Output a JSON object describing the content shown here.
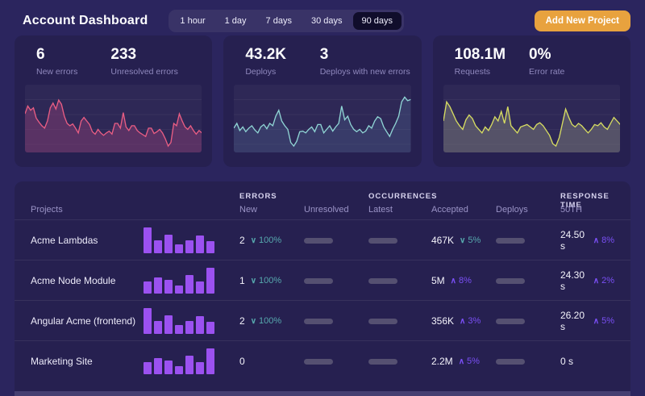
{
  "header": {
    "title": "Account Dashboard",
    "time_ranges": [
      "1 hour",
      "1 day",
      "7 days",
      "30 days",
      "90 days"
    ],
    "active_range": "90 days",
    "add_button_label": "Add New Project"
  },
  "colors": {
    "accent_orange": "#E8A23E",
    "trend_teal": "#57A9AE",
    "trend_purple": "#7A4FF5",
    "bar_purple": "#9B51F0",
    "line_errors": "#E85D83",
    "fill_errors": "rgba(142,62,117,0.45)",
    "line_deploys": "#8FD4D4",
    "fill_deploys": "rgba(84,110,155,0.28)",
    "line_requests": "#D6DC61",
    "fill_requests": "rgba(132,132,126,0.45)"
  },
  "stat_cards": [
    {
      "primary": {
        "value": "6",
        "label": "New errors"
      },
      "secondary": {
        "value": "233",
        "label": "Unresolved errors"
      }
    },
    {
      "primary": {
        "value": "43.2K",
        "label": "Deploys"
      },
      "secondary": {
        "value": "3",
        "label": "Deploys with new errors"
      }
    },
    {
      "primary": {
        "value": "108.1M",
        "label": "Requests"
      },
      "secondary": {
        "value": "0%",
        "label": "Error rate"
      }
    }
  ],
  "chart_data": [
    {
      "type": "area",
      "name": "errors-sparkline",
      "line_color": "#E85D83",
      "fill_color": "rgba(142,62,117,0.45)",
      "ylim": [
        0,
        100
      ],
      "grid": true,
      "values": [
        62,
        75,
        68,
        72,
        55,
        48,
        42,
        38,
        50,
        72,
        80,
        70,
        85,
        78,
        58,
        46,
        42,
        45,
        38,
        30,
        50,
        56,
        50,
        44,
        32,
        28,
        36,
        30,
        26,
        30,
        33,
        28,
        46,
        46,
        38,
        64,
        40,
        34,
        42,
        42,
        34,
        30,
        27,
        24,
        38,
        38,
        29,
        32,
        36,
        30,
        20,
        8,
        14,
        46,
        42,
        62,
        50,
        40,
        36,
        42,
        34,
        28,
        34,
        30
      ]
    },
    {
      "type": "area",
      "name": "deploys-sparkline",
      "line_color": "#8FD4D4",
      "fill_color": "rgba(84,110,155,0.28)",
      "ylim": [
        0,
        100
      ],
      "grid": true,
      "values": [
        38,
        46,
        34,
        40,
        32,
        38,
        42,
        35,
        30,
        40,
        44,
        37,
        46,
        42,
        58,
        68,
        50,
        42,
        36,
        14,
        8,
        16,
        32,
        33,
        30,
        36,
        40,
        32,
        44,
        44,
        30,
        36,
        42,
        33,
        40,
        46,
        75,
        52,
        58,
        44,
        36,
        32,
        36,
        30,
        33,
        42,
        38,
        50,
        57,
        54,
        40,
        32,
        24,
        36,
        46,
        58,
        82,
        90,
        84,
        86
      ]
    },
    {
      "type": "area",
      "name": "requests-sparkline",
      "line_color": "#D6DC61",
      "fill_color": "rgba(132,132,126,0.45)",
      "ylim": [
        0,
        100
      ],
      "grid": true,
      "values": [
        50,
        82,
        74,
        62,
        50,
        42,
        36,
        52,
        60,
        54,
        42,
        36,
        30,
        40,
        34,
        44,
        57,
        50,
        66,
        46,
        74,
        42,
        36,
        30,
        40,
        42,
        44,
        40,
        36,
        44,
        47,
        42,
        34,
        26,
        12,
        8,
        22,
        46,
        70,
        56,
        44,
        40,
        46,
        42,
        36,
        30,
        36,
        44,
        42,
        47,
        40,
        36,
        46,
        56,
        50,
        44
      ]
    }
  ],
  "table": {
    "group_headers": [
      "ERRORS",
      "OCCURRENCES",
      "RESPONSE TIME"
    ],
    "col_headers": [
      "Projects",
      "New",
      "Unresolved",
      "Latest",
      "Accepted",
      "Deploys",
      "50TH"
    ],
    "placeholder_columns": [
      "Unresolved",
      "Latest",
      "Deploys"
    ],
    "rows": [
      {
        "project": "Acme Lambdas",
        "bars": [
          100,
          40,
          66,
          23,
          43,
          63,
          37
        ],
        "new_value": "2",
        "new_trend": {
          "dir": "down",
          "pct": "100%",
          "tone": "teal"
        },
        "accepted_value": "467K",
        "accepted_trend": {
          "dir": "down",
          "pct": "5%",
          "tone": "teal"
        },
        "response_value": "24.50 s",
        "response_trend": {
          "dir": "up",
          "pct": "8%",
          "tone": "purple"
        }
      },
      {
        "project": "Acme Node Module",
        "bars": [
          36,
          57,
          46,
          21,
          68,
          36,
          100
        ],
        "new_value": "1",
        "new_trend": {
          "dir": "down",
          "pct": "100%",
          "tone": "teal"
        },
        "accepted_value": "5M",
        "accepted_trend": {
          "dir": "up",
          "pct": "8%",
          "tone": "purple"
        },
        "response_value": "24.30 s",
        "response_trend": {
          "dir": "up",
          "pct": "2%",
          "tone": "purple"
        }
      },
      {
        "project": "Angular Acme (frontend)",
        "bars": [
          100,
          40,
          66,
          23,
          43,
          63,
          37
        ],
        "new_value": "2",
        "new_trend": {
          "dir": "down",
          "pct": "100%",
          "tone": "teal"
        },
        "accepted_value": "356K",
        "accepted_trend": {
          "dir": "up",
          "pct": "3%",
          "tone": "purple"
        },
        "response_value": "26.20 s",
        "response_trend": {
          "dir": "up",
          "pct": "5%",
          "tone": "purple"
        }
      },
      {
        "project": "Marketing Site",
        "bars": [
          36,
          57,
          46,
          21,
          68,
          36,
          100
        ],
        "new_value": "0",
        "new_trend": null,
        "accepted_value": "2.2M",
        "accepted_trend": {
          "dir": "up",
          "pct": "5%",
          "tone": "purple"
        },
        "response_value": "0 s",
        "response_trend": null
      }
    ]
  }
}
